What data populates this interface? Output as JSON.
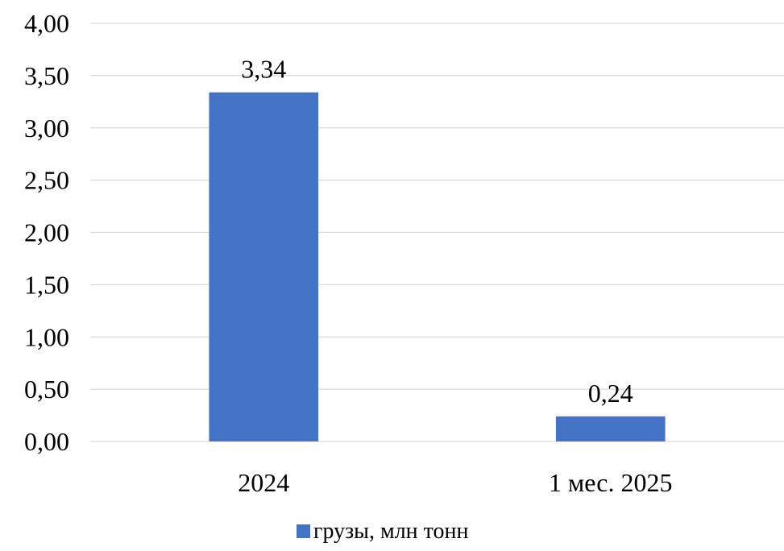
{
  "chart_data": {
    "type": "bar",
    "categories": [
      "2024",
      "1 мес. 2025"
    ],
    "series": [
      {
        "name": "грузы, млн тонн",
        "values": [
          3.34,
          0.24
        ],
        "data_labels": [
          "3,34",
          "0,24"
        ],
        "color": "#4472C4"
      }
    ],
    "ylim": [
      0,
      4
    ],
    "y_ticks": [
      0,
      0.5,
      1,
      1.5,
      2,
      2.5,
      3,
      3.5,
      4
    ],
    "y_tick_labels": [
      "0,00",
      "0,50",
      "1,00",
      "1,50",
      "2,00",
      "2,50",
      "3,00",
      "3,50",
      "4,00"
    ],
    "grid": true,
    "gridline_color": "#D9D9D9",
    "legend_position": "bottom"
  }
}
